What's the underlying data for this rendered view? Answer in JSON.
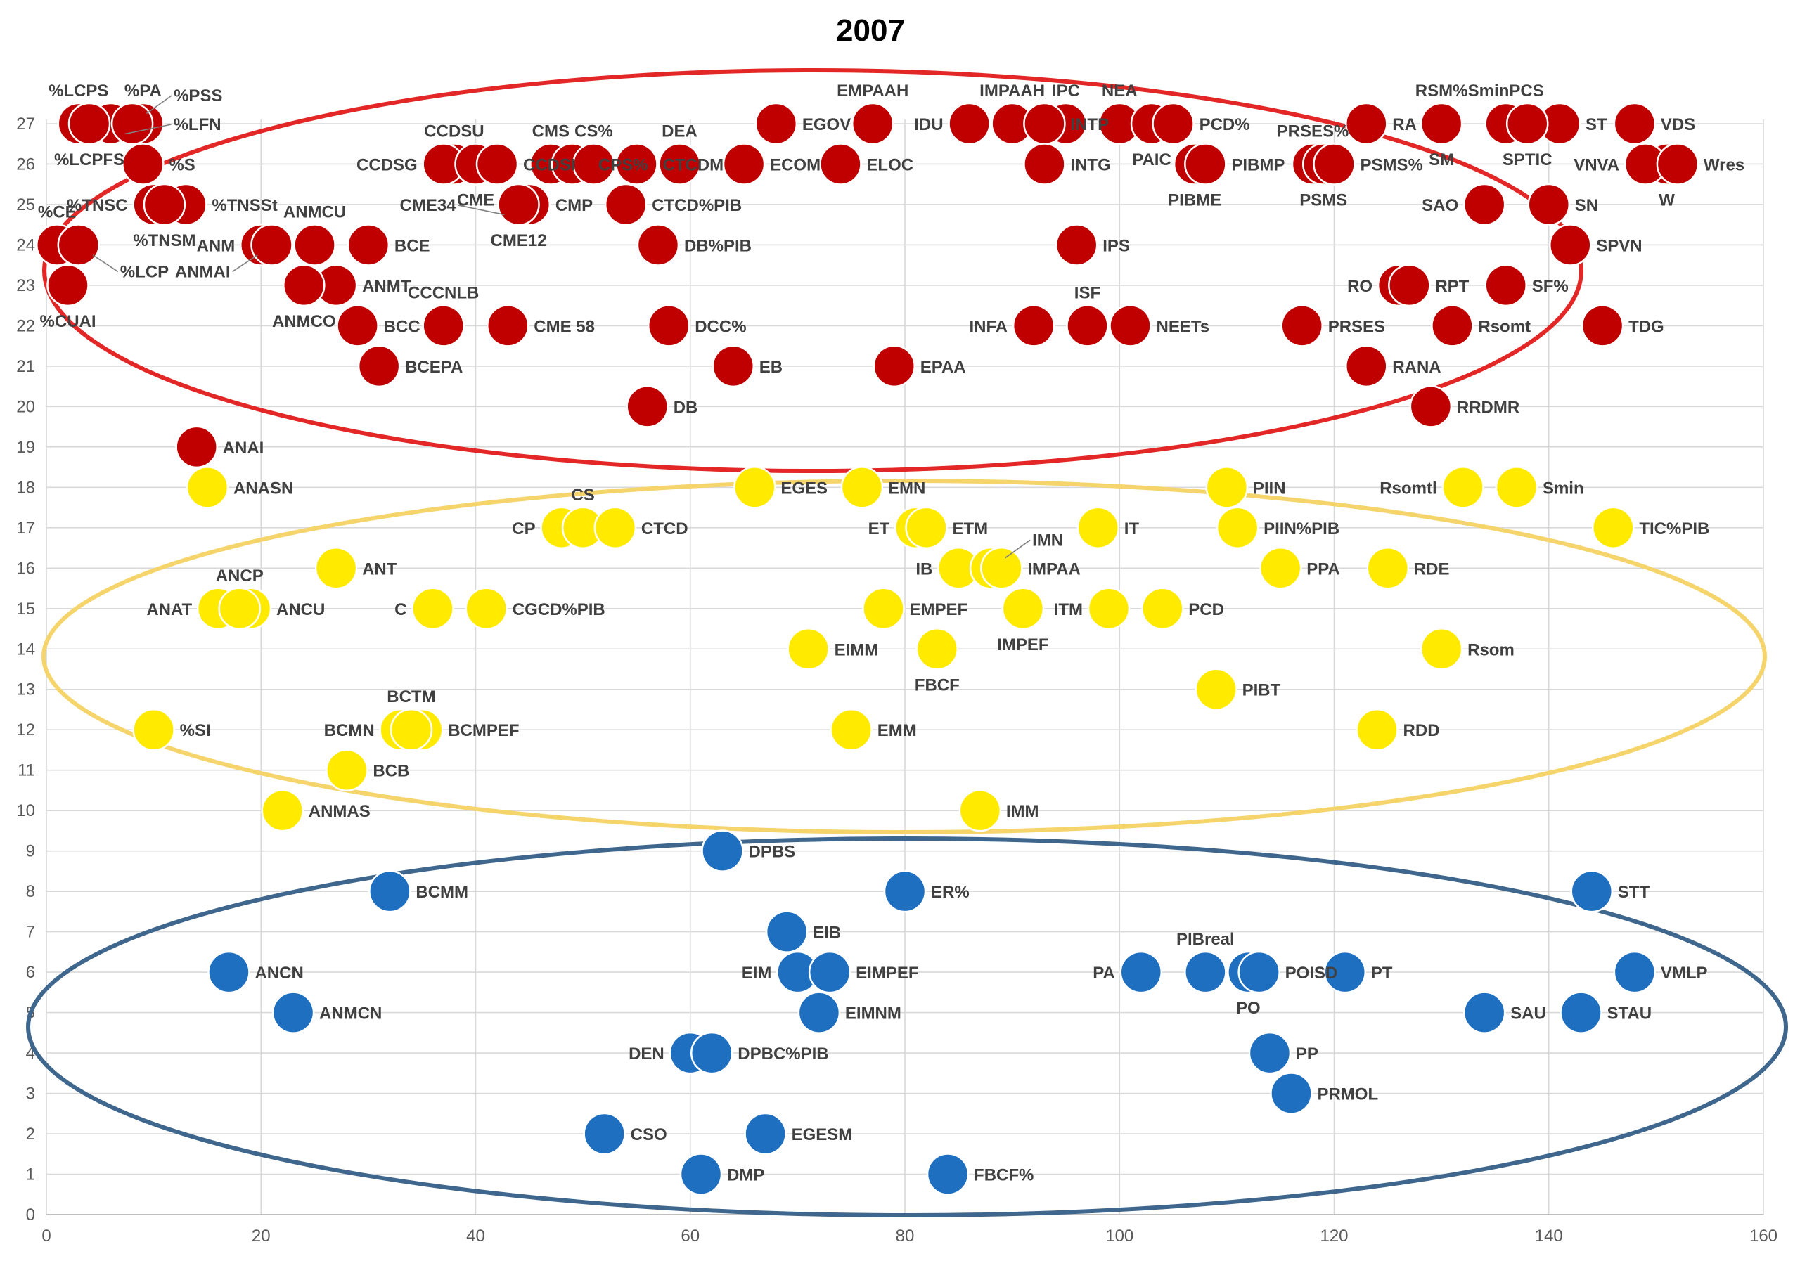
{
  "title": "2007",
  "chart_data": {
    "type": "scatter",
    "title": "2007",
    "xlim": [
      0,
      160
    ],
    "ylim": [
      0,
      27
    ],
    "x_ticks": [
      0,
      20,
      40,
      60,
      80,
      100,
      120,
      140,
      160
    ],
    "y_ticks": [
      0,
      1,
      2,
      3,
      4,
      5,
      6,
      7,
      8,
      9,
      10,
      11,
      12,
      13,
      14,
      15,
      16,
      17,
      18,
      19,
      20,
      21,
      22,
      23,
      24,
      25,
      26,
      27
    ],
    "grid": true,
    "groups": [
      {
        "color": "#c00000",
        "ring": "#e32626",
        "cluster_color": "#c00000"
      },
      {
        "color": "#ffea00",
        "ring": "#f5d56b",
        "cluster_color": "#ffea00"
      },
      {
        "color": "#1f6fc0",
        "ring": "#3f668c",
        "cluster_color": "#1f6fc0"
      }
    ],
    "points": [
      {
        "label": "%LCPS",
        "x": 3,
        "y": 27,
        "g": 0
      },
      {
        "label": "%LFN",
        "x": 6,
        "y": 27,
        "g": 0
      },
      {
        "label": "%PA",
        "x": 9,
        "y": 27,
        "g": 0
      },
      {
        "label": "%PSS",
        "x": 8,
        "y": 27,
        "g": 0
      },
      {
        "label": "%LCPFS",
        "x": 4,
        "y": 27,
        "g": 0
      },
      {
        "label": "%S",
        "x": 9,
        "y": 26,
        "g": 0
      },
      {
        "label": "%TNSSt",
        "x": 13,
        "y": 25,
        "g": 0
      },
      {
        "label": "%TNSC",
        "x": 10,
        "y": 25,
        "g": 0
      },
      {
        "label": "%TNSM",
        "x": 11,
        "y": 25,
        "g": 0
      },
      {
        "label": "%CE",
        "x": 1,
        "y": 24,
        "g": 0
      },
      {
        "label": "%LCP",
        "x": 3,
        "y": 24,
        "g": 0
      },
      {
        "label": "%CUAI",
        "x": 2,
        "y": 23,
        "g": 0
      },
      {
        "label": "ANM",
        "x": 20,
        "y": 24,
        "g": 0
      },
      {
        "label": "ANMAI",
        "x": 21,
        "y": 24,
        "g": 0
      },
      {
        "label": "ANMCU",
        "x": 25,
        "y": 24,
        "g": 0
      },
      {
        "label": "ANMT",
        "x": 27,
        "y": 23,
        "g": 0
      },
      {
        "label": "ANMCO",
        "x": 24,
        "y": 23,
        "g": 0
      },
      {
        "label": "BCE",
        "x": 30,
        "y": 24,
        "g": 0
      },
      {
        "label": "BCC",
        "x": 29,
        "y": 22,
        "g": 0
      },
      {
        "label": "BCEPA",
        "x": 31,
        "y": 21,
        "g": 0
      },
      {
        "label": "CCDSU",
        "x": 38,
        "y": 26,
        "g": 0
      },
      {
        "label": "CCDSG",
        "x": 37,
        "y": 26,
        "g": 0
      },
      {
        "label": "CME",
        "x": 40,
        "y": 26,
        "g": 0
      },
      {
        "label": "CCDSI",
        "x": 42,
        "y": 26,
        "g": 0
      },
      {
        "label": "CME12",
        "x": 44,
        "y": 25,
        "g": 0
      },
      {
        "label": "CMP",
        "x": 45,
        "y": 25,
        "g": 0
      },
      {
        "label": "CME34",
        "x": 44,
        "y": 25,
        "g": 0
      },
      {
        "label": "CMS",
        "x": 47,
        "y": 26,
        "g": 0
      },
      {
        "label": "CPS%",
        "x": 49,
        "y": 26,
        "g": 0
      },
      {
        "label": "CS%",
        "x": 51,
        "y": 26,
        "g": 0
      },
      {
        "label": "CTCDM",
        "x": 55,
        "y": 26,
        "g": 0
      },
      {
        "label": "CTCD%PIB",
        "x": 54,
        "y": 25,
        "g": 0
      },
      {
        "label": "CCCNLB",
        "x": 37,
        "y": 22,
        "g": 0
      },
      {
        "label": "CME 58",
        "x": 43,
        "y": 22,
        "g": 0
      },
      {
        "label": "DEA",
        "x": 59,
        "y": 26,
        "g": 0
      },
      {
        "label": "DB%PIB",
        "x": 57,
        "y": 24,
        "g": 0
      },
      {
        "label": "DCC%",
        "x": 58,
        "y": 22,
        "g": 0
      },
      {
        "label": "DB",
        "x": 56,
        "y": 20,
        "g": 0
      },
      {
        "label": "EB",
        "x": 64,
        "y": 21,
        "g": 0
      },
      {
        "label": "EGOV",
        "x": 68,
        "y": 27,
        "g": 0
      },
      {
        "label": "ECOM",
        "x": 65,
        "y": 26,
        "g": 0
      },
      {
        "label": "EMPAAH",
        "x": 77,
        "y": 27,
        "g": 0
      },
      {
        "label": "ELOC",
        "x": 74,
        "y": 26,
        "g": 0
      },
      {
        "label": "EPAA",
        "x": 79,
        "y": 21,
        "g": 0
      },
      {
        "label": "IDU",
        "x": 86,
        "y": 27,
        "g": 0
      },
      {
        "label": "IMPAAH",
        "x": 90,
        "y": 27,
        "g": 0
      },
      {
        "label": "IPC",
        "x": 95,
        "y": 27,
        "g": 0
      },
      {
        "label": "INTP",
        "x": 93,
        "y": 27,
        "g": 0
      },
      {
        "label": "INTG",
        "x": 93,
        "y": 26,
        "g": 0
      },
      {
        "label": "IPS",
        "x": 96,
        "y": 24,
        "g": 0
      },
      {
        "label": "INFA",
        "x": 92,
        "y": 22,
        "g": 0
      },
      {
        "label": "ISF",
        "x": 97,
        "y": 22,
        "g": 0
      },
      {
        "label": "NEETs",
        "x": 101,
        "y": 22,
        "g": 0
      },
      {
        "label": "NEA",
        "x": 100,
        "y": 27,
        "g": 0
      },
      {
        "label": "PAIC",
        "x": 103,
        "y": 27,
        "g": 0
      },
      {
        "label": "PCD%",
        "x": 105,
        "y": 27,
        "g": 0
      },
      {
        "label": "PIBME",
        "x": 107,
        "y": 26,
        "g": 0
      },
      {
        "label": "PIBMP",
        "x": 108,
        "y": 26,
        "g": 0
      },
      {
        "label": "PRSES%",
        "x": 118,
        "y": 26,
        "g": 0
      },
      {
        "label": "PSMS",
        "x": 119,
        "y": 26,
        "g": 0
      },
      {
        "label": "PSMS%",
        "x": 120,
        "y": 26,
        "g": 0
      },
      {
        "label": "PRSES",
        "x": 117,
        "y": 22,
        "g": 0
      },
      {
        "label": "RA",
        "x": 123,
        "y": 27,
        "g": 0
      },
      {
        "label": "RSM%",
        "x": 130,
        "y": 27,
        "g": 0
      },
      {
        "label": "SM",
        "x": 130,
        "y": 27,
        "g": 0
      },
      {
        "label": "SminPCS",
        "x": 136,
        "y": 27,
        "g": 0
      },
      {
        "label": "ST",
        "x": 141,
        "y": 27,
        "g": 0
      },
      {
        "label": "VDS",
        "x": 148,
        "y": 27,
        "g": 0
      },
      {
        "label": "SPTIC",
        "x": 138,
        "y": 27,
        "g": 0
      },
      {
        "label": "SAO",
        "x": 134,
        "y": 25,
        "g": 0
      },
      {
        "label": "SN",
        "x": 140,
        "y": 25,
        "g": 0
      },
      {
        "label": "SPVN",
        "x": 142,
        "y": 24,
        "g": 0
      },
      {
        "label": "W",
        "x": 151,
        "y": 26,
        "g": 0
      },
      {
        "label": "VNVA",
        "x": 149,
        "y": 26,
        "g": 0
      },
      {
        "label": "Wres",
        "x": 152,
        "y": 26,
        "g": 0
      },
      {
        "label": "RO",
        "x": 126,
        "y": 23,
        "g": 0
      },
      {
        "label": "RPT",
        "x": 127,
        "y": 23,
        "g": 0
      },
      {
        "label": "SF%",
        "x": 136,
        "y": 23,
        "g": 0
      },
      {
        "label": "Rsomt",
        "x": 131,
        "y": 22,
        "g": 0
      },
      {
        "label": "TDG",
        "x": 145,
        "y": 22,
        "g": 0
      },
      {
        "label": "RANA",
        "x": 123,
        "y": 21,
        "g": 0
      },
      {
        "label": "RRDMR",
        "x": 129,
        "y": 20,
        "g": 0
      },
      {
        "label": "ANAI",
        "x": 14,
        "y": 19,
        "g": 0
      },
      {
        "label": "ANASN",
        "x": 15,
        "y": 18,
        "g": 1
      },
      {
        "label": "EGES",
        "x": 66,
        "y": 18,
        "g": 1
      },
      {
        "label": "EMN",
        "x": 76,
        "y": 18,
        "g": 1
      },
      {
        "label": "Rsomtl",
        "x": 132,
        "y": 18,
        "g": 1
      },
      {
        "label": "Smin",
        "x": 137,
        "y": 18,
        "g": 1
      },
      {
        "label": "PIIN",
        "x": 110,
        "y": 18,
        "g": 1
      },
      {
        "label": "CP",
        "x": 48,
        "y": 17,
        "g": 1
      },
      {
        "label": "CS",
        "x": 50,
        "y": 17,
        "g": 1
      },
      {
        "label": "CTCD",
        "x": 53,
        "y": 17,
        "g": 1
      },
      {
        "label": "ET",
        "x": 81,
        "y": 17,
        "g": 1
      },
      {
        "label": "ETM",
        "x": 82,
        "y": 17,
        "g": 1
      },
      {
        "label": "IT",
        "x": 98,
        "y": 17,
        "g": 1
      },
      {
        "label": "PIIN%PIB",
        "x": 111,
        "y": 17,
        "g": 1
      },
      {
        "label": "TIC%PIB",
        "x": 146,
        "y": 17,
        "g": 1
      },
      {
        "label": "ANT",
        "x": 27,
        "y": 16,
        "g": 1
      },
      {
        "label": "IB",
        "x": 85,
        "y": 16,
        "g": 1
      },
      {
        "label": "IMN",
        "x": 88,
        "y": 16,
        "g": 1
      },
      {
        "label": "IMPAA",
        "x": 89,
        "y": 16,
        "g": 1
      },
      {
        "label": "PPA",
        "x": 115,
        "y": 16,
        "g": 1
      },
      {
        "label": "RDE",
        "x": 125,
        "y": 16,
        "g": 1
      },
      {
        "label": "ANCU",
        "x": 19,
        "y": 15,
        "g": 1
      },
      {
        "label": "ANAT",
        "x": 16,
        "y": 15,
        "g": 1
      },
      {
        "label": "ANCP",
        "x": 18,
        "y": 15,
        "g": 1
      },
      {
        "label": "C",
        "x": 36,
        "y": 15,
        "g": 1
      },
      {
        "label": "CGCD%PIB",
        "x": 41,
        "y": 15,
        "g": 1
      },
      {
        "label": "EMPEF",
        "x": 78,
        "y": 15,
        "g": 1
      },
      {
        "label": "IMPEF",
        "x": 91,
        "y": 15,
        "g": 1
      },
      {
        "label": "ITM",
        "x": 99,
        "y": 15,
        "g": 1
      },
      {
        "label": "PCD",
        "x": 104,
        "y": 15,
        "g": 1
      },
      {
        "label": "EIMM",
        "x": 71,
        "y": 14,
        "g": 1
      },
      {
        "label": "FBCF",
        "x": 83,
        "y": 14,
        "g": 1
      },
      {
        "label": "Rsom",
        "x": 130,
        "y": 14,
        "g": 1
      },
      {
        "label": "PIBT",
        "x": 109,
        "y": 13,
        "g": 1
      },
      {
        "label": "%SI",
        "x": 10,
        "y": 12,
        "g": 1
      },
      {
        "label": "BCMN",
        "x": 33,
        "y": 12,
        "g": 1
      },
      {
        "label": "BCMPEF",
        "x": 35,
        "y": 12,
        "g": 1
      },
      {
        "label": "BCTM",
        "x": 34,
        "y": 12,
        "g": 1
      },
      {
        "label": "EMM",
        "x": 75,
        "y": 12,
        "g": 1
      },
      {
        "label": "RDD",
        "x": 124,
        "y": 12,
        "g": 1
      },
      {
        "label": "BCB",
        "x": 28,
        "y": 11,
        "g": 1
      },
      {
        "label": "ANMAS",
        "x": 22,
        "y": 10,
        "g": 1
      },
      {
        "label": "IMM",
        "x": 87,
        "y": 10,
        "g": 1
      },
      {
        "label": "DPBS",
        "x": 63,
        "y": 9,
        "g": 2
      },
      {
        "label": "BCMM",
        "x": 32,
        "y": 8,
        "g": 2
      },
      {
        "label": "ER%",
        "x": 80,
        "y": 8,
        "g": 2
      },
      {
        "label": "STT",
        "x": 144,
        "y": 8,
        "g": 2
      },
      {
        "label": "EIB",
        "x": 69,
        "y": 7,
        "g": 2
      },
      {
        "label": "ANCN",
        "x": 17,
        "y": 6,
        "g": 2
      },
      {
        "label": "EIM",
        "x": 70,
        "y": 6,
        "g": 2
      },
      {
        "label": "EIMPEF",
        "x": 73,
        "y": 6,
        "g": 2
      },
      {
        "label": "PA",
        "x": 102,
        "y": 6,
        "g": 2
      },
      {
        "label": "PIBreal",
        "x": 108,
        "y": 6,
        "g": 2
      },
      {
        "label": "PO",
        "x": 112,
        "y": 6,
        "g": 2
      },
      {
        "label": "POISD",
        "x": 113,
        "y": 6,
        "g": 2
      },
      {
        "label": "PT",
        "x": 121,
        "y": 6,
        "g": 2
      },
      {
        "label": "VMLP",
        "x": 148,
        "y": 6,
        "g": 2
      },
      {
        "label": "ANMCN",
        "x": 23,
        "y": 5,
        "g": 2
      },
      {
        "label": "EIMNM",
        "x": 72,
        "y": 5,
        "g": 2
      },
      {
        "label": "SAU",
        "x": 134,
        "y": 5,
        "g": 2
      },
      {
        "label": "STAU",
        "x": 143,
        "y": 5,
        "g": 2
      },
      {
        "label": "DEN",
        "x": 60,
        "y": 4,
        "g": 2
      },
      {
        "label": "DPBC%PIB",
        "x": 62,
        "y": 4,
        "g": 2
      },
      {
        "label": "PP",
        "x": 114,
        "y": 4,
        "g": 2
      },
      {
        "label": "PRMOL",
        "x": 116,
        "y": 3,
        "g": 2
      },
      {
        "label": "CSO",
        "x": 52,
        "y": 2,
        "g": 2
      },
      {
        "label": "EGESM",
        "x": 67,
        "y": 2,
        "g": 2
      },
      {
        "label": "DMP",
        "x": 61,
        "y": 1,
        "g": 2
      },
      {
        "label": "FBCF%",
        "x": 84,
        "y": 1,
        "g": 2
      }
    ]
  }
}
